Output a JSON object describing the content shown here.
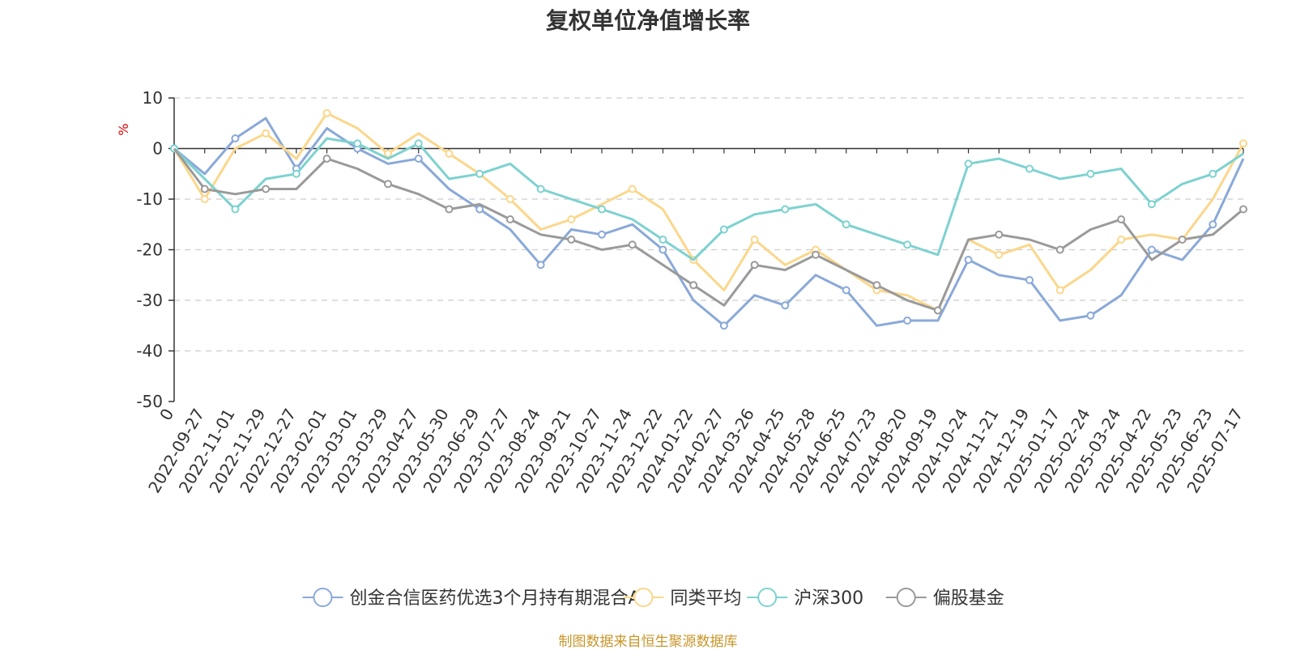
{
  "chart_data": {
    "type": "line",
    "title": "复权单位净值增长率",
    "ylabel": "%",
    "ylim": [
      -50,
      10
    ],
    "yticks": [
      10,
      0,
      -10,
      -20,
      -30,
      -40,
      -50
    ],
    "categories": [
      "0",
      "2022-09-27",
      "2022-11-01",
      "2022-11-29",
      "2022-12-27",
      "2023-02-01",
      "2023-03-01",
      "2023-03-29",
      "2023-04-27",
      "2023-05-30",
      "2023-06-29",
      "2023-07-27",
      "2023-08-24",
      "2023-09-21",
      "2023-10-27",
      "2023-11-24",
      "2023-12-22",
      "2024-01-22",
      "2024-02-27",
      "2024-03-26",
      "2024-04-25",
      "2024-05-28",
      "2024-06-25",
      "2024-07-23",
      "2024-08-20",
      "2024-09-19",
      "2024-10-24",
      "2024-11-21",
      "2024-12-19",
      "2025-01-17",
      "2025-02-24",
      "2025-03-24",
      "2025-04-22",
      "2025-05-23",
      "2025-06-23",
      "2025-07-17"
    ],
    "grid": "dashed horizontal",
    "legend_position": "bottom",
    "series": [
      {
        "name": "创金合信医药优选3个月持有期混合A",
        "color": "#8aa9d8",
        "values": [
          0,
          -5,
          2,
          6,
          -4,
          4,
          0,
          -3,
          -2,
          -8,
          -12,
          -16,
          -23,
          -16,
          -17,
          -15,
          -20,
          -30,
          -35,
          -29,
          -31,
          -25,
          -28,
          -35,
          -34,
          -34,
          -22,
          -25,
          -26,
          -34,
          -33,
          -29,
          -20,
          -22,
          -15,
          -2
        ]
      },
      {
        "name": "同类平均",
        "color": "#fbd78b",
        "values": [
          0,
          -10,
          0,
          3,
          -2,
          7,
          4,
          -1,
          3,
          -1,
          -5,
          -10,
          -16,
          -14,
          -11,
          -8,
          -12,
          -22,
          -28,
          -18,
          -23,
          -20,
          -24,
          -28,
          -29,
          -32,
          -18,
          -21,
          -19,
          -28,
          -24,
          -18,
          -17,
          -18,
          -10,
          1
        ]
      },
      {
        "name": "沪深300",
        "color": "#7dd2d0",
        "values": [
          0,
          -6,
          -12,
          -6,
          -5,
          2,
          1,
          -2,
          1,
          -6,
          -5,
          -3,
          -8,
          -10,
          -12,
          -14,
          -18,
          -22,
          -16,
          -13,
          -12,
          -11,
          -15,
          -17,
          -19,
          -21,
          -3,
          -2,
          -4,
          -6,
          -5,
          -4,
          -11,
          -7,
          -5,
          -1
        ]
      },
      {
        "name": "偏股基金",
        "color": "#9a9a9a",
        "values": [
          0,
          -8,
          -9,
          -8,
          -8,
          -2,
          -4,
          -7,
          -9,
          -12,
          -11,
          -14,
          -17,
          -18,
          -20,
          -19,
          -23,
          -27,
          -31,
          -23,
          -24,
          -21,
          -24,
          -27,
          -30,
          -32,
          -18,
          -17,
          -18,
          -20,
          -16,
          -14,
          -22,
          -18,
          -17,
          -12
        ]
      }
    ]
  },
  "footer": {
    "credit": "制图数据来自恒生聚源数据库"
  }
}
